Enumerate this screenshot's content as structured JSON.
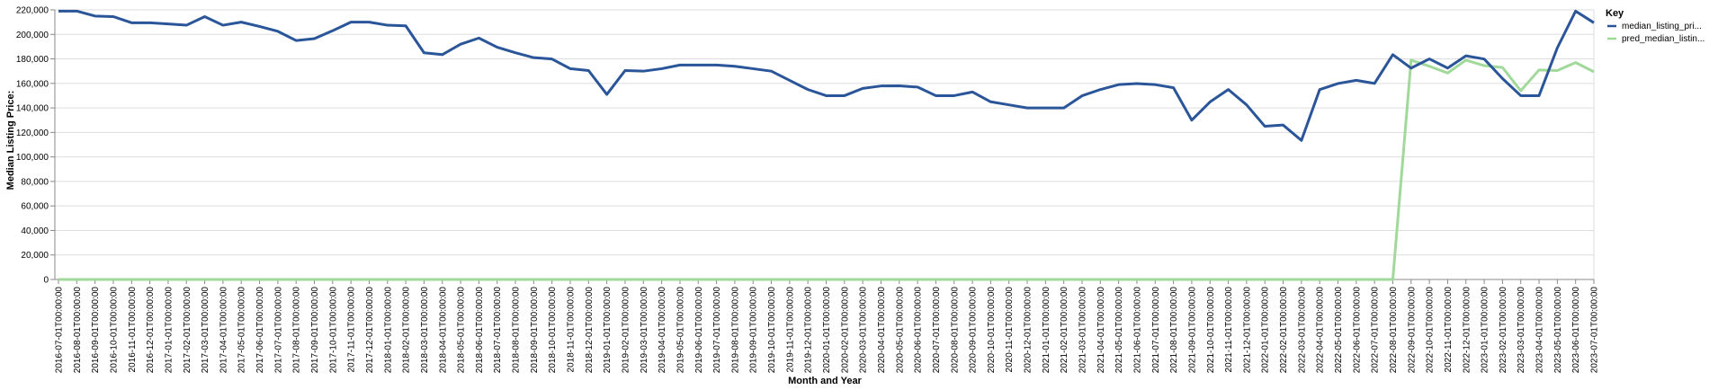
{
  "chart_data": {
    "type": "line",
    "xlabel": "Month and Year",
    "ylabel": "Median Listing Price:",
    "ylim": [
      0,
      220000
    ],
    "yticks": [
      0,
      20000,
      40000,
      60000,
      80000,
      100000,
      120000,
      140000,
      160000,
      180000,
      200000,
      220000
    ],
    "ytick_labels": [
      "0",
      "20,000",
      "40,000",
      "60,000",
      "80,000",
      "100,000",
      "120,000",
      "140,000",
      "160,000",
      "180,000",
      "200,000",
      "220,000"
    ],
    "grid": true,
    "legend": {
      "title": "Key",
      "placement": "right"
    },
    "x": [
      "2016-07-01T00:00:00",
      "2016-08-01T00:00:00",
      "2016-09-01T00:00:00",
      "2016-10-01T00:00:00",
      "2016-11-01T00:00:00",
      "2016-12-01T00:00:00",
      "2017-01-01T00:00:00",
      "2017-02-01T00:00:00",
      "2017-03-01T00:00:00",
      "2017-04-01T00:00:00",
      "2017-05-01T00:00:00",
      "2017-06-01T00:00:00",
      "2017-07-01T00:00:00",
      "2017-08-01T00:00:00",
      "2017-09-01T00:00:00",
      "2017-10-01T00:00:00",
      "2017-11-01T00:00:00",
      "2017-12-01T00:00:00",
      "2018-01-01T00:00:00",
      "2018-02-01T00:00:00",
      "2018-03-01T00:00:00",
      "2018-04-01T00:00:00",
      "2018-05-01T00:00:00",
      "2018-06-01T00:00:00",
      "2018-07-01T00:00:00",
      "2018-08-01T00:00:00",
      "2018-09-01T00:00:00",
      "2018-10-01T00:00:00",
      "2018-11-01T00:00:00",
      "2018-12-01T00:00:00",
      "2019-01-01T00:00:00",
      "2019-02-01T00:00:00",
      "2019-03-01T00:00:00",
      "2019-04-01T00:00:00",
      "2019-05-01T00:00:00",
      "2019-06-01T00:00:00",
      "2019-07-01T00:00:00",
      "2019-08-01T00:00:00",
      "2019-09-01T00:00:00",
      "2019-10-01T00:00:00",
      "2019-11-01T00:00:00",
      "2019-12-01T00:00:00",
      "2020-01-01T00:00:00",
      "2020-02-01T00:00:00",
      "2020-03-01T00:00:00",
      "2020-04-01T00:00:00",
      "2020-05-01T00:00:00",
      "2020-06-01T00:00:00",
      "2020-07-01T00:00:00",
      "2020-08-01T00:00:00",
      "2020-09-01T00:00:00",
      "2020-10-01T00:00:00",
      "2020-11-01T00:00:00",
      "2020-12-01T00:00:00",
      "2021-01-01T00:00:00",
      "2021-02-01T00:00:00",
      "2021-03-01T00:00:00",
      "2021-04-01T00:00:00",
      "2021-05-01T00:00:00",
      "2021-06-01T00:00:00",
      "2021-07-01T00:00:00",
      "2021-08-01T00:00:00",
      "2021-09-01T00:00:00",
      "2021-10-01T00:00:00",
      "2021-11-01T00:00:00",
      "2021-12-01T00:00:00",
      "2022-01-01T00:00:00",
      "2022-02-01T00:00:00",
      "2022-03-01T00:00:00",
      "2022-04-01T00:00:00",
      "2022-05-01T00:00:00",
      "2022-06-01T00:00:00",
      "2022-07-01T00:00:00",
      "2022-08-01T00:00:00",
      "2022-09-01T00:00:00",
      "2022-10-01T00:00:00",
      "2022-11-01T00:00:00",
      "2022-12-01T00:00:00",
      "2023-01-01T00:00:00",
      "2023-02-01T00:00:00",
      "2023-03-01T00:00:00",
      "2023-04-01T00:00:00",
      "2023-05-01T00:00:00",
      "2023-06-01T00:00:00",
      "2023-07-01T00:00:00"
    ],
    "series": [
      {
        "name": "median_listing_pri...",
        "color": "#2a5599",
        "values": [
          219000,
          219000,
          215000,
          214500,
          209500,
          209500,
          208500,
          207500,
          214500,
          207500,
          210000,
          206500,
          202500,
          195000,
          196500,
          203000,
          210000,
          210000,
          207500,
          207000,
          185000,
          183500,
          192000,
          197000,
          189500,
          185000,
          181000,
          179900,
          172000,
          170500,
          151000,
          170500,
          170000,
          172000,
          175000,
          175000,
          175000,
          174000,
          172000,
          170000,
          162500,
          155000,
          150000,
          150000,
          155900,
          157900,
          158000,
          157000,
          150000,
          150000,
          153000,
          145000,
          142500,
          140000,
          140000,
          140000,
          149900,
          155000,
          159000,
          159900,
          159000,
          156500,
          130000,
          144900,
          155000,
          142500,
          125000,
          126000,
          113500,
          155000,
          159900,
          162500,
          160000,
          183500,
          172500,
          180000,
          172500,
          182500,
          179900,
          164000,
          150000,
          150000,
          189000,
          219000,
          209500
        ]
      },
      {
        "name": "pred_median_listin...",
        "color": "#a1d99b",
        "values": [
          0,
          0,
          0,
          0,
          0,
          0,
          0,
          0,
          0,
          0,
          0,
          0,
          0,
          0,
          0,
          0,
          0,
          0,
          0,
          0,
          0,
          0,
          0,
          0,
          0,
          0,
          0,
          0,
          0,
          0,
          0,
          0,
          0,
          0,
          0,
          0,
          0,
          0,
          0,
          0,
          0,
          0,
          0,
          0,
          0,
          0,
          0,
          0,
          0,
          0,
          0,
          0,
          0,
          0,
          0,
          0,
          0,
          0,
          0,
          0,
          0,
          0,
          0,
          0,
          0,
          0,
          0,
          0,
          0,
          0,
          0,
          0,
          0,
          0,
          179000,
          174000,
          168500,
          179000,
          174500,
          173000,
          154000,
          171000,
          170500,
          177000,
          169500
        ]
      }
    ]
  }
}
